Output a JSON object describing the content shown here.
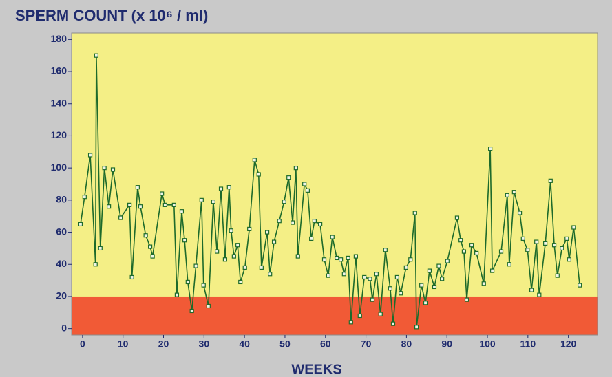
{
  "chart_data": {
    "type": "line",
    "title": "SPERM COUNT (x 10⁶ / ml)",
    "x_label": "WEEKS",
    "xlim": [
      -2.7,
      127.2
    ],
    "ylim": [
      -4,
      184
    ],
    "xticks": [
      0,
      10,
      20,
      30,
      40,
      50,
      60,
      70,
      80,
      90,
      100,
      110,
      120
    ],
    "yticks": [
      0,
      20,
      40,
      60,
      80,
      100,
      120,
      140,
      160,
      180
    ],
    "threshold": 20,
    "background_color": "#f4ef86",
    "threshold_color": "#f15a36",
    "series": [
      {
        "name": "Sperm count",
        "color": "#1d6a2b",
        "x": [
          -0.5,
          0.5,
          1.9,
          3.2,
          3.4,
          4.4,
          5.4,
          6.5,
          7.5,
          9.4,
          11.6,
          12.2,
          13.6,
          14.3,
          15.6,
          16.7,
          17.3,
          19.6,
          20.4,
          22.6,
          23.3,
          24.5,
          25.2,
          26,
          27,
          28,
          29.4,
          29.9,
          31.1,
          32.3,
          33.2,
          34.2,
          35.2,
          36.2,
          36.7,
          37.4,
          38.3,
          39,
          40.1,
          41.2,
          42.5,
          43.5,
          44.2,
          45.6,
          46.3,
          47.3,
          48.6,
          49.8,
          50.9,
          51.9,
          52.7,
          53.2,
          54.8,
          55.6,
          56.5,
          57.3,
          58.7,
          59.7,
          60.7,
          61.7,
          62.8,
          63.8,
          64.6,
          65.6,
          66.3,
          67.5,
          68.5,
          69.6,
          71,
          71.6,
          72.6,
          73.6,
          74.8,
          76,
          76.7,
          77.7,
          78.6,
          79.9,
          81,
          82.1,
          82.5,
          83.7,
          84.7,
          85.7,
          86.9,
          88,
          88.8,
          90.1,
          92.5,
          93.4,
          94.2,
          94.9,
          96.1,
          97.3,
          99.1,
          100.7,
          101.2,
          103.4,
          104.9,
          105.4,
          106.6,
          108,
          108.8,
          109.9,
          110.9,
          112.1,
          112.8,
          114.3,
          115.6,
          116.5,
          117.3,
          118.4,
          119.6,
          120.2,
          121.3,
          122.8
        ],
        "values": [
          65,
          82,
          108,
          40,
          170,
          50,
          100,
          76,
          99,
          69,
          77,
          32,
          88,
          76,
          58,
          51,
          45,
          84,
          77,
          77,
          21,
          73,
          55,
          29,
          11,
          39,
          80,
          27,
          14,
          79,
          48,
          87,
          43,
          88,
          61,
          45,
          52,
          29,
          38,
          62,
          105,
          96,
          38,
          60,
          34,
          54,
          67,
          79,
          94,
          66,
          100,
          45,
          90,
          86,
          56,
          67,
          65,
          43,
          33,
          57,
          44,
          43,
          34,
          44,
          4,
          45,
          8,
          32,
          31,
          18,
          34,
          9,
          49,
          25,
          3,
          32,
          22,
          38,
          43,
          72,
          1,
          27,
          16,
          36,
          26,
          39,
          31,
          42,
          69,
          55,
          48,
          18,
          52,
          47,
          28,
          112,
          36,
          48,
          83,
          40,
          85,
          72,
          56,
          49,
          24,
          54,
          21,
          53,
          92,
          52,
          33,
          50,
          56,
          43,
          63,
          27
        ]
      }
    ]
  }
}
